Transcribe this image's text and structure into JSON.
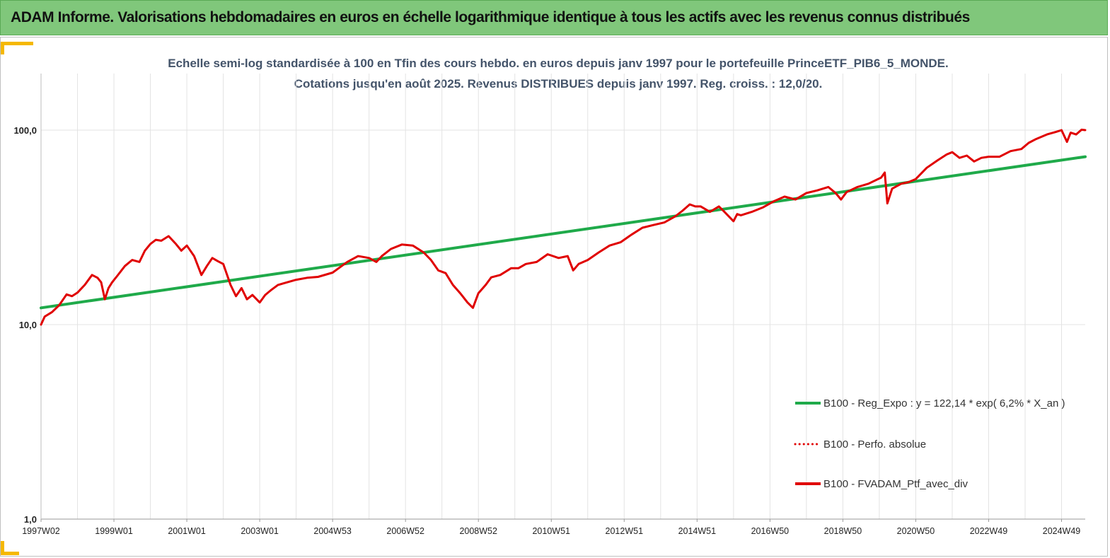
{
  "banner": {
    "title": "ADAM Informe. Valorisations hebdomadaires en euros en échelle logarithmique identique à tous les actifs avec les revenus connus distribués"
  },
  "chart_data": {
    "type": "line",
    "subtitle_lines": [
      "Echelle semi-log standardisée à 100 en Tfin des cours hebdo.  en euros depuis janv 1997 pour le portefeuille PrinceETF_PIB6_5_MONDE.",
      "Cotations jusqu'en août 2025. Revenus DISTRIBUES depuis janv 1997. Reg. croiss. : 12,0/20."
    ],
    "y_scale": "log",
    "ylim": [
      1,
      100
    ],
    "y_ticks": [
      {
        "value": 1,
        "label": "1,0"
      },
      {
        "value": 10,
        "label": "10,0"
      },
      {
        "value": 100,
        "label": "100,0"
      }
    ],
    "xlim": [
      1997.0,
      2025.65
    ],
    "x_ticks": [
      {
        "value": 1997.0,
        "label": "1997W02"
      },
      {
        "value": 1999.0,
        "label": "1999W01"
      },
      {
        "value": 2001.0,
        "label": "2001W01"
      },
      {
        "value": 2003.0,
        "label": "2003W01"
      },
      {
        "value": 2005.0,
        "label": "2004W53"
      },
      {
        "value": 2007.0,
        "label": "2006W52"
      },
      {
        "value": 2009.0,
        "label": "2008W52"
      },
      {
        "value": 2011.0,
        "label": "2010W51"
      },
      {
        "value": 2013.0,
        "label": "2012W51"
      },
      {
        "value": 2015.0,
        "label": "2014W51"
      },
      {
        "value": 2017.0,
        "label": "2016W50"
      },
      {
        "value": 2019.0,
        "label": "2018W50"
      },
      {
        "value": 2021.0,
        "label": "2020W50"
      },
      {
        "value": 2023.0,
        "label": "2022W49"
      },
      {
        "value": 2025.0,
        "label": "2024W49"
      }
    ],
    "grid": "vertical",
    "legend_position": "bottom-right",
    "series": [
      {
        "name": "B100 - Reg_Expo : y = 122,14 * exp( 6,2% *  X_an )",
        "color": "#1faa4a",
        "style": "solid",
        "x": [
          1997.0,
          2025.65
        ],
        "values": [
          12.2,
          73.0
        ]
      },
      {
        "name": "B100 - Perfo. absolue",
        "color": "#e00000",
        "style": "dotted",
        "x": [],
        "values": []
      },
      {
        "name": "B100 - FVADAM_Ptf_avec_div",
        "color": "#e00000",
        "style": "solid",
        "x": [
          1997.0,
          1997.1,
          1997.3,
          1997.5,
          1997.7,
          1997.85,
          1998.0,
          1998.2,
          1998.4,
          1998.55,
          1998.65,
          1998.75,
          1998.85,
          1998.95,
          1999.1,
          1999.3,
          1999.5,
          1999.7,
          1999.85,
          2000.0,
          2000.15,
          2000.3,
          2000.5,
          2000.7,
          2000.85,
          2001.0,
          2001.2,
          2001.4,
          2001.55,
          2001.7,
          2001.85,
          2002.0,
          2002.2,
          2002.35,
          2002.5,
          2002.65,
          2002.8,
          2003.0,
          2003.15,
          2003.3,
          2003.5,
          2003.7,
          2004.0,
          2004.3,
          2004.6,
          2005.0,
          2005.4,
          2005.7,
          2006.0,
          2006.2,
          2006.35,
          2006.6,
          2006.9,
          2007.2,
          2007.5,
          2007.7,
          2007.9,
          2008.1,
          2008.3,
          2008.5,
          2008.7,
          2008.85,
          2009.0,
          2009.2,
          2009.35,
          2009.6,
          2009.9,
          2010.1,
          2010.3,
          2010.6,
          2010.9,
          2011.2,
          2011.45,
          2011.6,
          2011.75,
          2012.0,
          2012.3,
          2012.6,
          2012.9,
          2013.2,
          2013.5,
          2013.8,
          2014.1,
          2014.4,
          2014.6,
          2014.8,
          2014.95,
          2015.1,
          2015.35,
          2015.6,
          2015.75,
          2016.0,
          2016.1,
          2016.2,
          2016.5,
          2016.8,
          2017.1,
          2017.4,
          2017.7,
          2018.0,
          2018.3,
          2018.6,
          2018.8,
          2018.95,
          2019.1,
          2019.4,
          2019.7,
          2020.05,
          2020.15,
          2020.22,
          2020.35,
          2020.6,
          2020.8,
          2021.0,
          2021.3,
          2021.6,
          2021.85,
          2022.0,
          2022.2,
          2022.4,
          2022.6,
          2022.8,
          2023.0,
          2023.3,
          2023.6,
          2023.9,
          2024.1,
          2024.3,
          2024.6,
          2024.85,
          2025.0,
          2025.15,
          2025.25,
          2025.4,
          2025.55,
          2025.65
        ],
        "values": [
          10.0,
          11.0,
          11.6,
          12.6,
          14.3,
          14.0,
          14.6,
          16.0,
          18.0,
          17.4,
          16.5,
          13.5,
          15.4,
          16.5,
          17.9,
          20.0,
          21.5,
          21.0,
          24.0,
          26.0,
          27.3,
          27.0,
          28.5,
          26.0,
          24.0,
          25.5,
          22.5,
          18.0,
          20.0,
          22.0,
          21.2,
          20.5,
          16.0,
          14.0,
          15.4,
          13.5,
          14.2,
          13.0,
          14.2,
          15.0,
          16.0,
          16.4,
          17.0,
          17.4,
          17.6,
          18.5,
          21.0,
          22.5,
          22.0,
          21.0,
          22.5,
          24.5,
          25.8,
          25.5,
          23.5,
          21.5,
          19.0,
          18.4,
          16.0,
          14.5,
          13.0,
          12.2,
          14.5,
          16.0,
          17.5,
          18.0,
          19.5,
          19.5,
          20.5,
          21.0,
          23.0,
          22.0,
          22.5,
          19.0,
          20.5,
          21.5,
          23.5,
          25.5,
          26.5,
          29.0,
          31.5,
          32.5,
          33.5,
          36.0,
          38.5,
          41.5,
          40.5,
          40.5,
          38.0,
          40.5,
          38.0,
          34.0,
          37.0,
          36.5,
          38.0,
          40.0,
          43.0,
          45.5,
          44.0,
          47.5,
          49.0,
          51.0,
          47.5,
          44.0,
          48.0,
          51.0,
          53.0,
          57.0,
          60.5,
          42.0,
          50.0,
          53.0,
          54.0,
          56.0,
          64.0,
          70.0,
          75.0,
          77.0,
          72.0,
          74.0,
          69.0,
          72.0,
          73.0,
          73.0,
          78.0,
          80.0,
          86.0,
          90.0,
          95.0,
          98.0,
          100.0,
          87.0,
          97.0,
          95.0,
          100.5,
          100.0
        ]
      }
    ]
  }
}
